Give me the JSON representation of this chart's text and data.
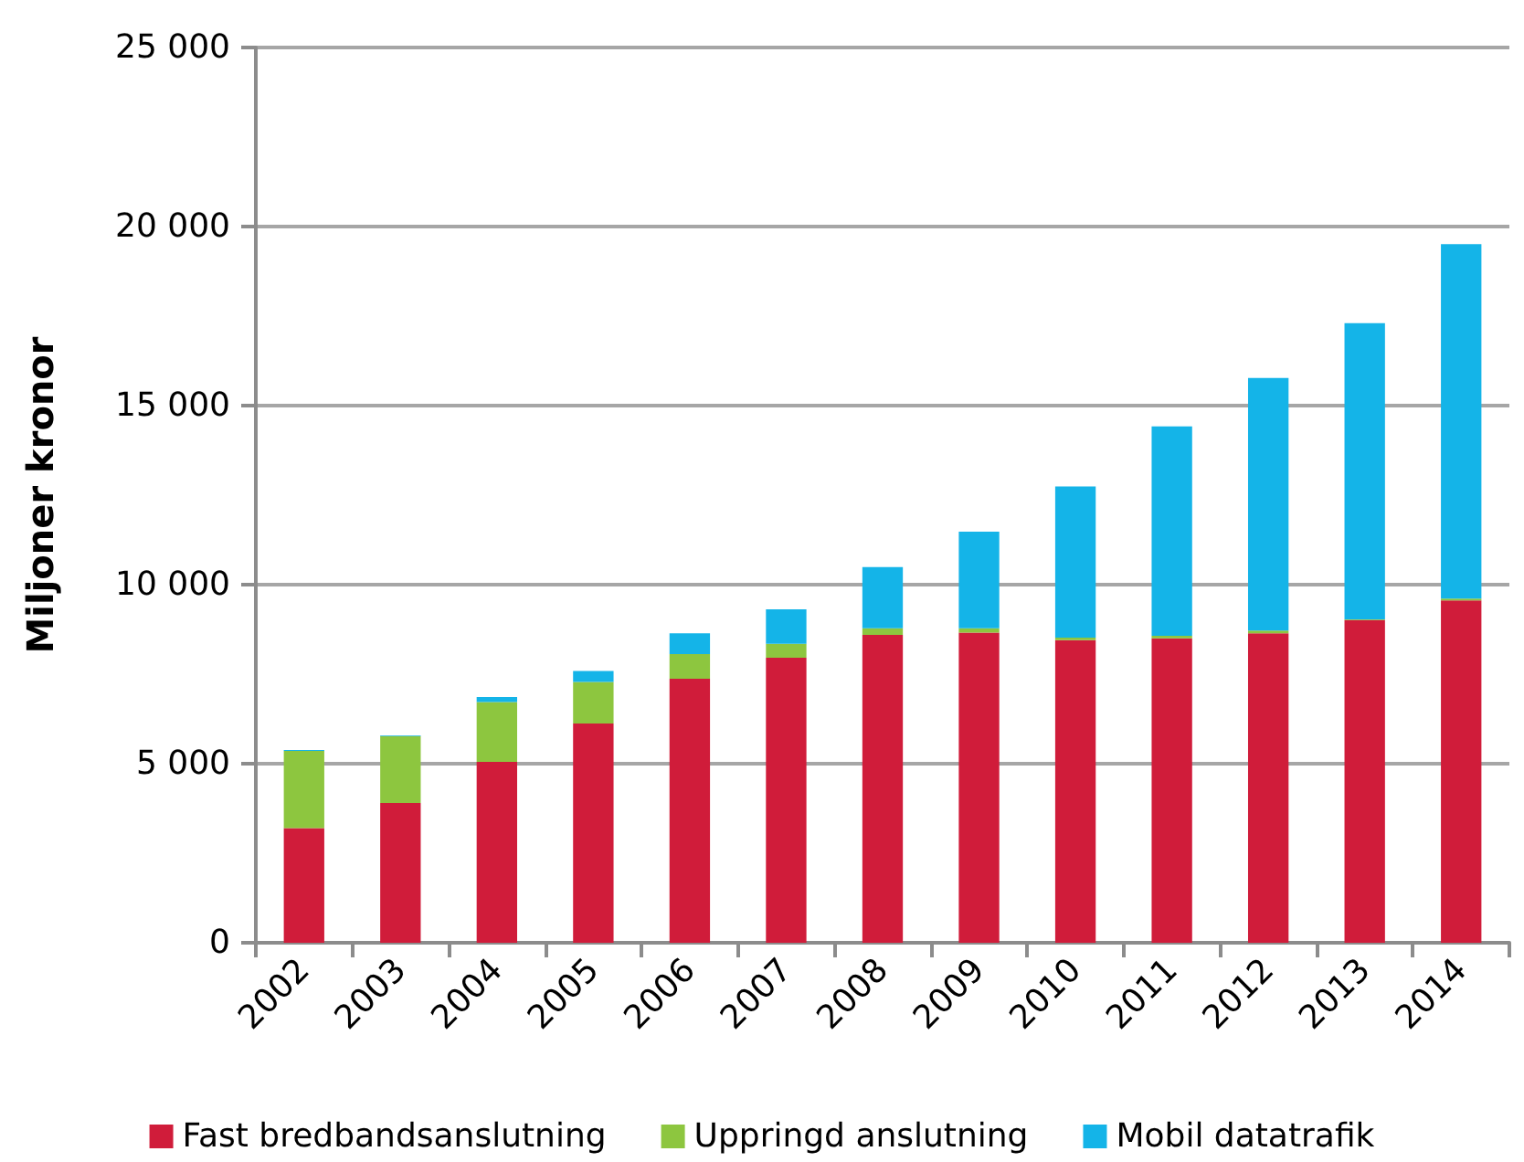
{
  "chart_data": {
    "type": "bar",
    "stacked": true,
    "ylabel": "Miljoner kronor",
    "categories": [
      "2002",
      "2003",
      "2004",
      "2005",
      "2006",
      "2007",
      "2008",
      "2009",
      "2010",
      "2011",
      "2012",
      "2013",
      "2014"
    ],
    "series": [
      {
        "name": "Fast bredbandsanslutning",
        "color": "#d01c3a",
        "values": [
          3200,
          3900,
          5050,
          6120,
          7370,
          7960,
          8600,
          8660,
          8450,
          8500,
          8640,
          9010,
          9560
        ]
      },
      {
        "name": "Uppringd anslutning",
        "color": "#8dc63f",
        "values": [
          2160,
          1870,
          1670,
          1160,
          690,
          390,
          180,
          120,
          70,
          70,
          80,
          20,
          50
        ]
      },
      {
        "name": "Mobil datatrafik",
        "color": "#14b4e8",
        "values": [
          20,
          20,
          140,
          310,
          580,
          960,
          1710,
          2700,
          4220,
          5850,
          7050,
          8270,
          9900
        ]
      }
    ],
    "ylim": [
      0,
      25000
    ],
    "yticks": [
      {
        "value": 0,
        "label": "0"
      },
      {
        "value": 5000,
        "label": "5 000"
      },
      {
        "value": 10000,
        "label": "10 000"
      },
      {
        "value": 15000,
        "label": "15 000"
      },
      {
        "value": 20000,
        "label": "20 000"
      },
      {
        "value": 25000,
        "label": "25 000"
      }
    ],
    "grid": "y",
    "legend": "bottom"
  }
}
